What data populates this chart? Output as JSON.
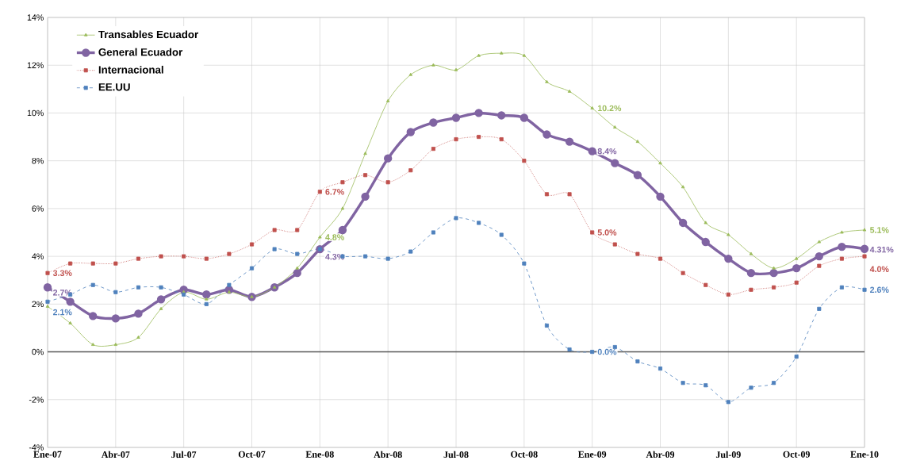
{
  "chart_data": {
    "type": "line",
    "categories": [
      "Ene-07",
      null,
      null,
      "Abr-07",
      null,
      null,
      "Jul-07",
      null,
      null,
      "Oct-07",
      null,
      null,
      "Ene-08",
      null,
      null,
      "Abr-08",
      null,
      null,
      "Jul-08",
      null,
      null,
      "Oct-08",
      null,
      null,
      "Ene-09",
      null,
      null,
      "Abr-09",
      null,
      null,
      "Jul-09",
      null,
      null,
      "Oct-09",
      null,
      null,
      "Ene-10"
    ],
    "series": [
      {
        "name": "Transables Ecuador",
        "color": "#9bbb59",
        "marker": "triangle",
        "line_style": "solid",
        "values": [
          1.9,
          1.2,
          0.3,
          0.3,
          0.6,
          1.8,
          2.5,
          2.2,
          2.5,
          2.3,
          2.7,
          3.5,
          4.8,
          6.0,
          8.3,
          10.5,
          11.6,
          12.0,
          11.8,
          12.4,
          12.5,
          12.4,
          11.3,
          10.9,
          10.2,
          9.4,
          8.8,
          7.9,
          6.9,
          5.4,
          4.9,
          4.1,
          3.5,
          3.9,
          4.6,
          5.0,
          5.1
        ],
        "value_labels": [
          null,
          null,
          null,
          null,
          null,
          null,
          null,
          null,
          null,
          null,
          null,
          null,
          "4.8%",
          null,
          null,
          null,
          null,
          null,
          null,
          null,
          null,
          null,
          null,
          null,
          "10.2%",
          null,
          null,
          null,
          null,
          null,
          null,
          null,
          null,
          null,
          null,
          null,
          "5.1%"
        ]
      },
      {
        "name": "General Ecuador",
        "color": "#8064a2",
        "marker": "circle",
        "line_style": "solid",
        "values": [
          2.7,
          2.1,
          1.5,
          1.4,
          1.6,
          2.2,
          2.6,
          2.4,
          2.6,
          2.3,
          2.7,
          3.3,
          4.3,
          5.1,
          6.5,
          8.1,
          9.2,
          9.6,
          9.8,
          10.0,
          9.9,
          9.8,
          9.1,
          8.8,
          8.4,
          7.9,
          7.4,
          6.5,
          5.4,
          4.6,
          3.9,
          3.3,
          3.3,
          3.5,
          4.0,
          4.4,
          4.31
        ],
        "value_labels": [
          "2.7%",
          null,
          null,
          null,
          null,
          null,
          null,
          null,
          null,
          null,
          null,
          null,
          "4.3%",
          null,
          null,
          null,
          null,
          null,
          null,
          null,
          null,
          null,
          null,
          null,
          "8.4%",
          null,
          null,
          null,
          null,
          null,
          null,
          null,
          null,
          null,
          null,
          null,
          "4.31%"
        ]
      },
      {
        "name": "Internacional",
        "color": "#c0504d",
        "marker": "square",
        "line_style": "dotted",
        "values": [
          3.3,
          3.7,
          3.7,
          3.7,
          3.9,
          4.0,
          4.0,
          3.9,
          4.1,
          4.5,
          5.1,
          5.1,
          6.7,
          7.1,
          7.4,
          7.1,
          7.6,
          8.5,
          8.9,
          9.0,
          8.9,
          8.0,
          6.6,
          6.6,
          5.0,
          4.5,
          4.1,
          3.9,
          3.3,
          2.8,
          2.4,
          2.6,
          2.7,
          2.9,
          3.6,
          3.9,
          4.0
        ],
        "value_labels": [
          "3.3%",
          null,
          null,
          null,
          null,
          null,
          null,
          null,
          null,
          null,
          null,
          null,
          "6.7%",
          null,
          null,
          null,
          null,
          null,
          null,
          null,
          null,
          null,
          null,
          null,
          "5.0%",
          null,
          null,
          null,
          null,
          null,
          null,
          null,
          null,
          null,
          null,
          null,
          "4.0%"
        ]
      },
      {
        "name": "EE.UU",
        "color": "#4f81bd",
        "marker": "square",
        "line_style": "dashed",
        "values": [
          2.1,
          2.4,
          2.8,
          2.5,
          2.7,
          2.7,
          2.4,
          2.0,
          2.8,
          3.5,
          4.3,
          4.1,
          4.3,
          4.0,
          4.0,
          3.9,
          4.2,
          5.0,
          5.6,
          5.4,
          4.9,
          3.7,
          1.1,
          0.1,
          0.0,
          0.2,
          -0.4,
          -0.7,
          -1.3,
          -1.4,
          -2.1,
          -1.5,
          -1.3,
          -0.2,
          1.8,
          2.7,
          2.6
        ],
        "value_labels": [
          "2.1%",
          null,
          null,
          null,
          null,
          null,
          null,
          null,
          null,
          null,
          null,
          null,
          null,
          null,
          null,
          null,
          null,
          null,
          null,
          null,
          null,
          null,
          null,
          null,
          "0.0%",
          null,
          null,
          null,
          null,
          null,
          null,
          null,
          null,
          null,
          null,
          null,
          "2.6%"
        ]
      }
    ],
    "ylim": [
      -4,
      14
    ],
    "yticks": [
      {
        "value": -4,
        "label": "-4%"
      },
      {
        "value": -2,
        "label": "-2%"
      },
      {
        "value": 0,
        "label": "0%"
      },
      {
        "value": 2,
        "label": "2%"
      },
      {
        "value": 4,
        "label": "4%"
      },
      {
        "value": 6,
        "label": "6%"
      },
      {
        "value": 8,
        "label": "8%"
      },
      {
        "value": 10,
        "label": "10%"
      },
      {
        "value": 12,
        "label": "12%"
      },
      {
        "value": 14,
        "label": "14%"
      }
    ],
    "grid": true,
    "legend": "top left"
  }
}
